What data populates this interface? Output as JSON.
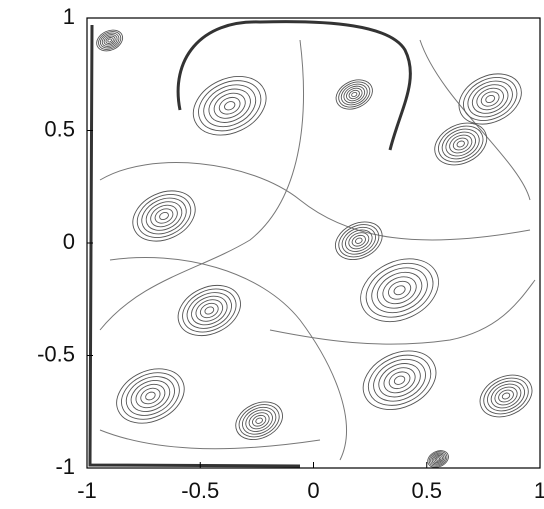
{
  "chart_data": {
    "type": "contour",
    "x": [
      -0.37,
      0.18,
      0.78,
      0.65,
      -0.66,
      0.2,
      0.38,
      -0.46,
      -0.72,
      -0.24,
      0.38,
      0.85,
      -0.9,
      0.55
    ],
    "y": [
      0.61,
      0.66,
      0.64,
      0.44,
      0.12,
      0.01,
      -0.21,
      -0.3,
      -0.68,
      -0.79,
      -0.61,
      -0.68,
      0.9,
      -0.96
    ],
    "r": [
      0.14,
      0.07,
      0.12,
      0.1,
      0.12,
      0.09,
      0.15,
      0.12,
      0.13,
      0.09,
      0.14,
      0.1,
      0.05,
      0.04
    ],
    "color": "#555555",
    "xlim": [
      -1,
      1
    ],
    "ylim": [
      -1,
      1
    ],
    "xticks": [
      -1,
      -0.5,
      0,
      0.5,
      1
    ],
    "yticks": [
      -1,
      -0.5,
      0,
      0.5,
      1
    ]
  }
}
